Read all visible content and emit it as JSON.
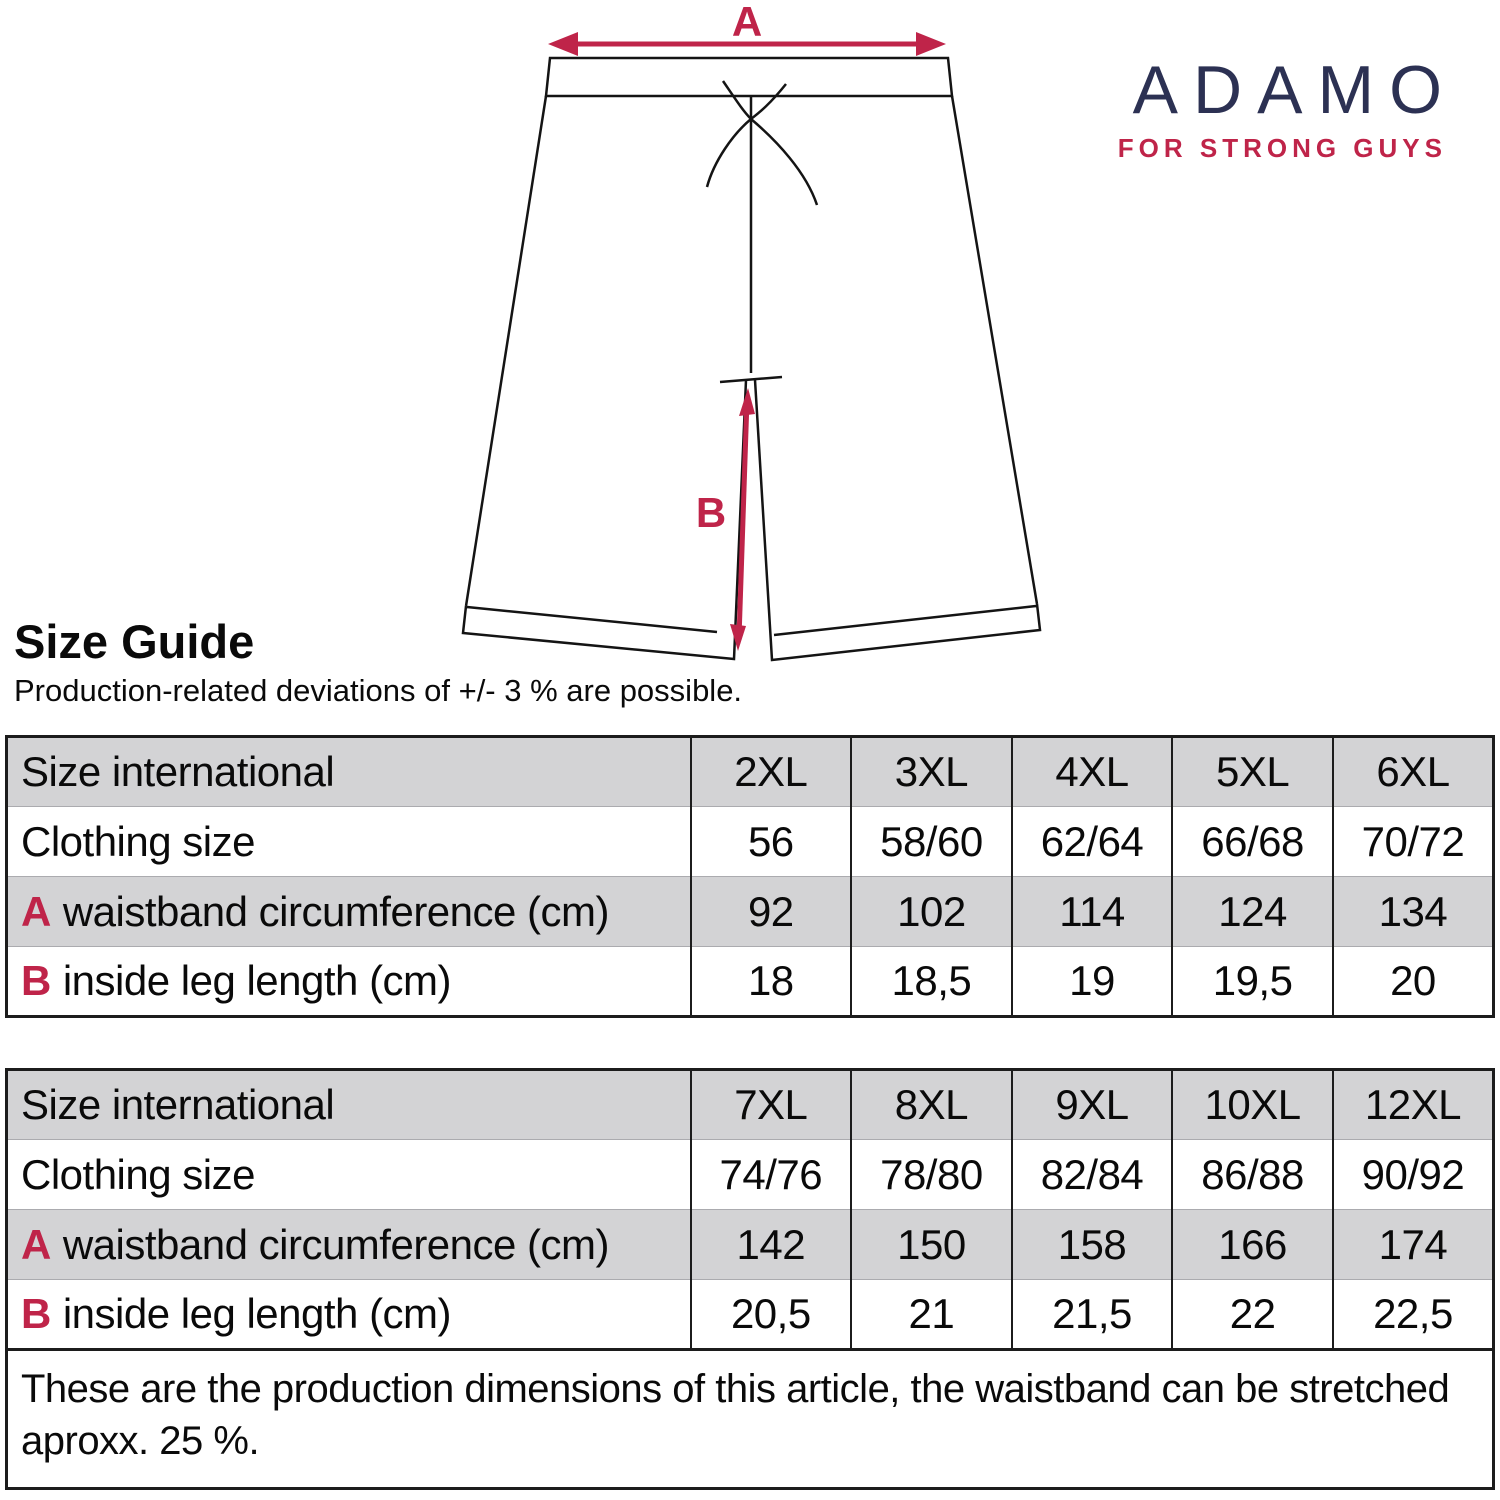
{
  "logo": {
    "brand": "ADAMO",
    "tagline": "FOR STRONG GUYS"
  },
  "diagram": {
    "waistband_label": "A",
    "inseam_label": "B"
  },
  "header": {
    "title": "Size Guide",
    "subtitle": "Production-related deviations of +/- 3 % are possible."
  },
  "colors": {
    "accent_red": "#bf2449",
    "brand_navy": "#2c3153",
    "row_gray": "#d3d3d5"
  },
  "size_tables": [
    {
      "rows": [
        {
          "prefix": "",
          "label": "Size international",
          "values": [
            "2XL",
            "3XL",
            "4XL",
            "5XL",
            "6XL"
          ]
        },
        {
          "prefix": "",
          "label": "Clothing size",
          "values": [
            "56",
            "58/60",
            "62/64",
            "66/68",
            "70/72"
          ]
        },
        {
          "prefix": "A",
          "label": "waistband circumference (cm)",
          "values": [
            "92",
            "102",
            "114",
            "124",
            "134"
          ]
        },
        {
          "prefix": "B",
          "label": "inside leg length (cm)",
          "values": [
            "18",
            "18,5",
            "19",
            "19,5",
            "20"
          ]
        }
      ]
    },
    {
      "rows": [
        {
          "prefix": "",
          "label": "Size international",
          "values": [
            "7XL",
            "8XL",
            "9XL",
            "10XL",
            "12XL"
          ]
        },
        {
          "prefix": "",
          "label": "Clothing size",
          "values": [
            "74/76",
            "78/80",
            "82/84",
            "86/88",
            "90/92"
          ]
        },
        {
          "prefix": "A",
          "label": "waistband circumference (cm)",
          "values": [
            "142",
            "150",
            "158",
            "166",
            "174"
          ]
        },
        {
          "prefix": "B",
          "label": "inside leg length (cm)",
          "values": [
            "20,5",
            "21",
            "21,5",
            "22",
            "22,5"
          ]
        }
      ],
      "note": "These are the production dimensions of this article, the waistband can be stretched aproxx. 25 %."
    }
  ]
}
